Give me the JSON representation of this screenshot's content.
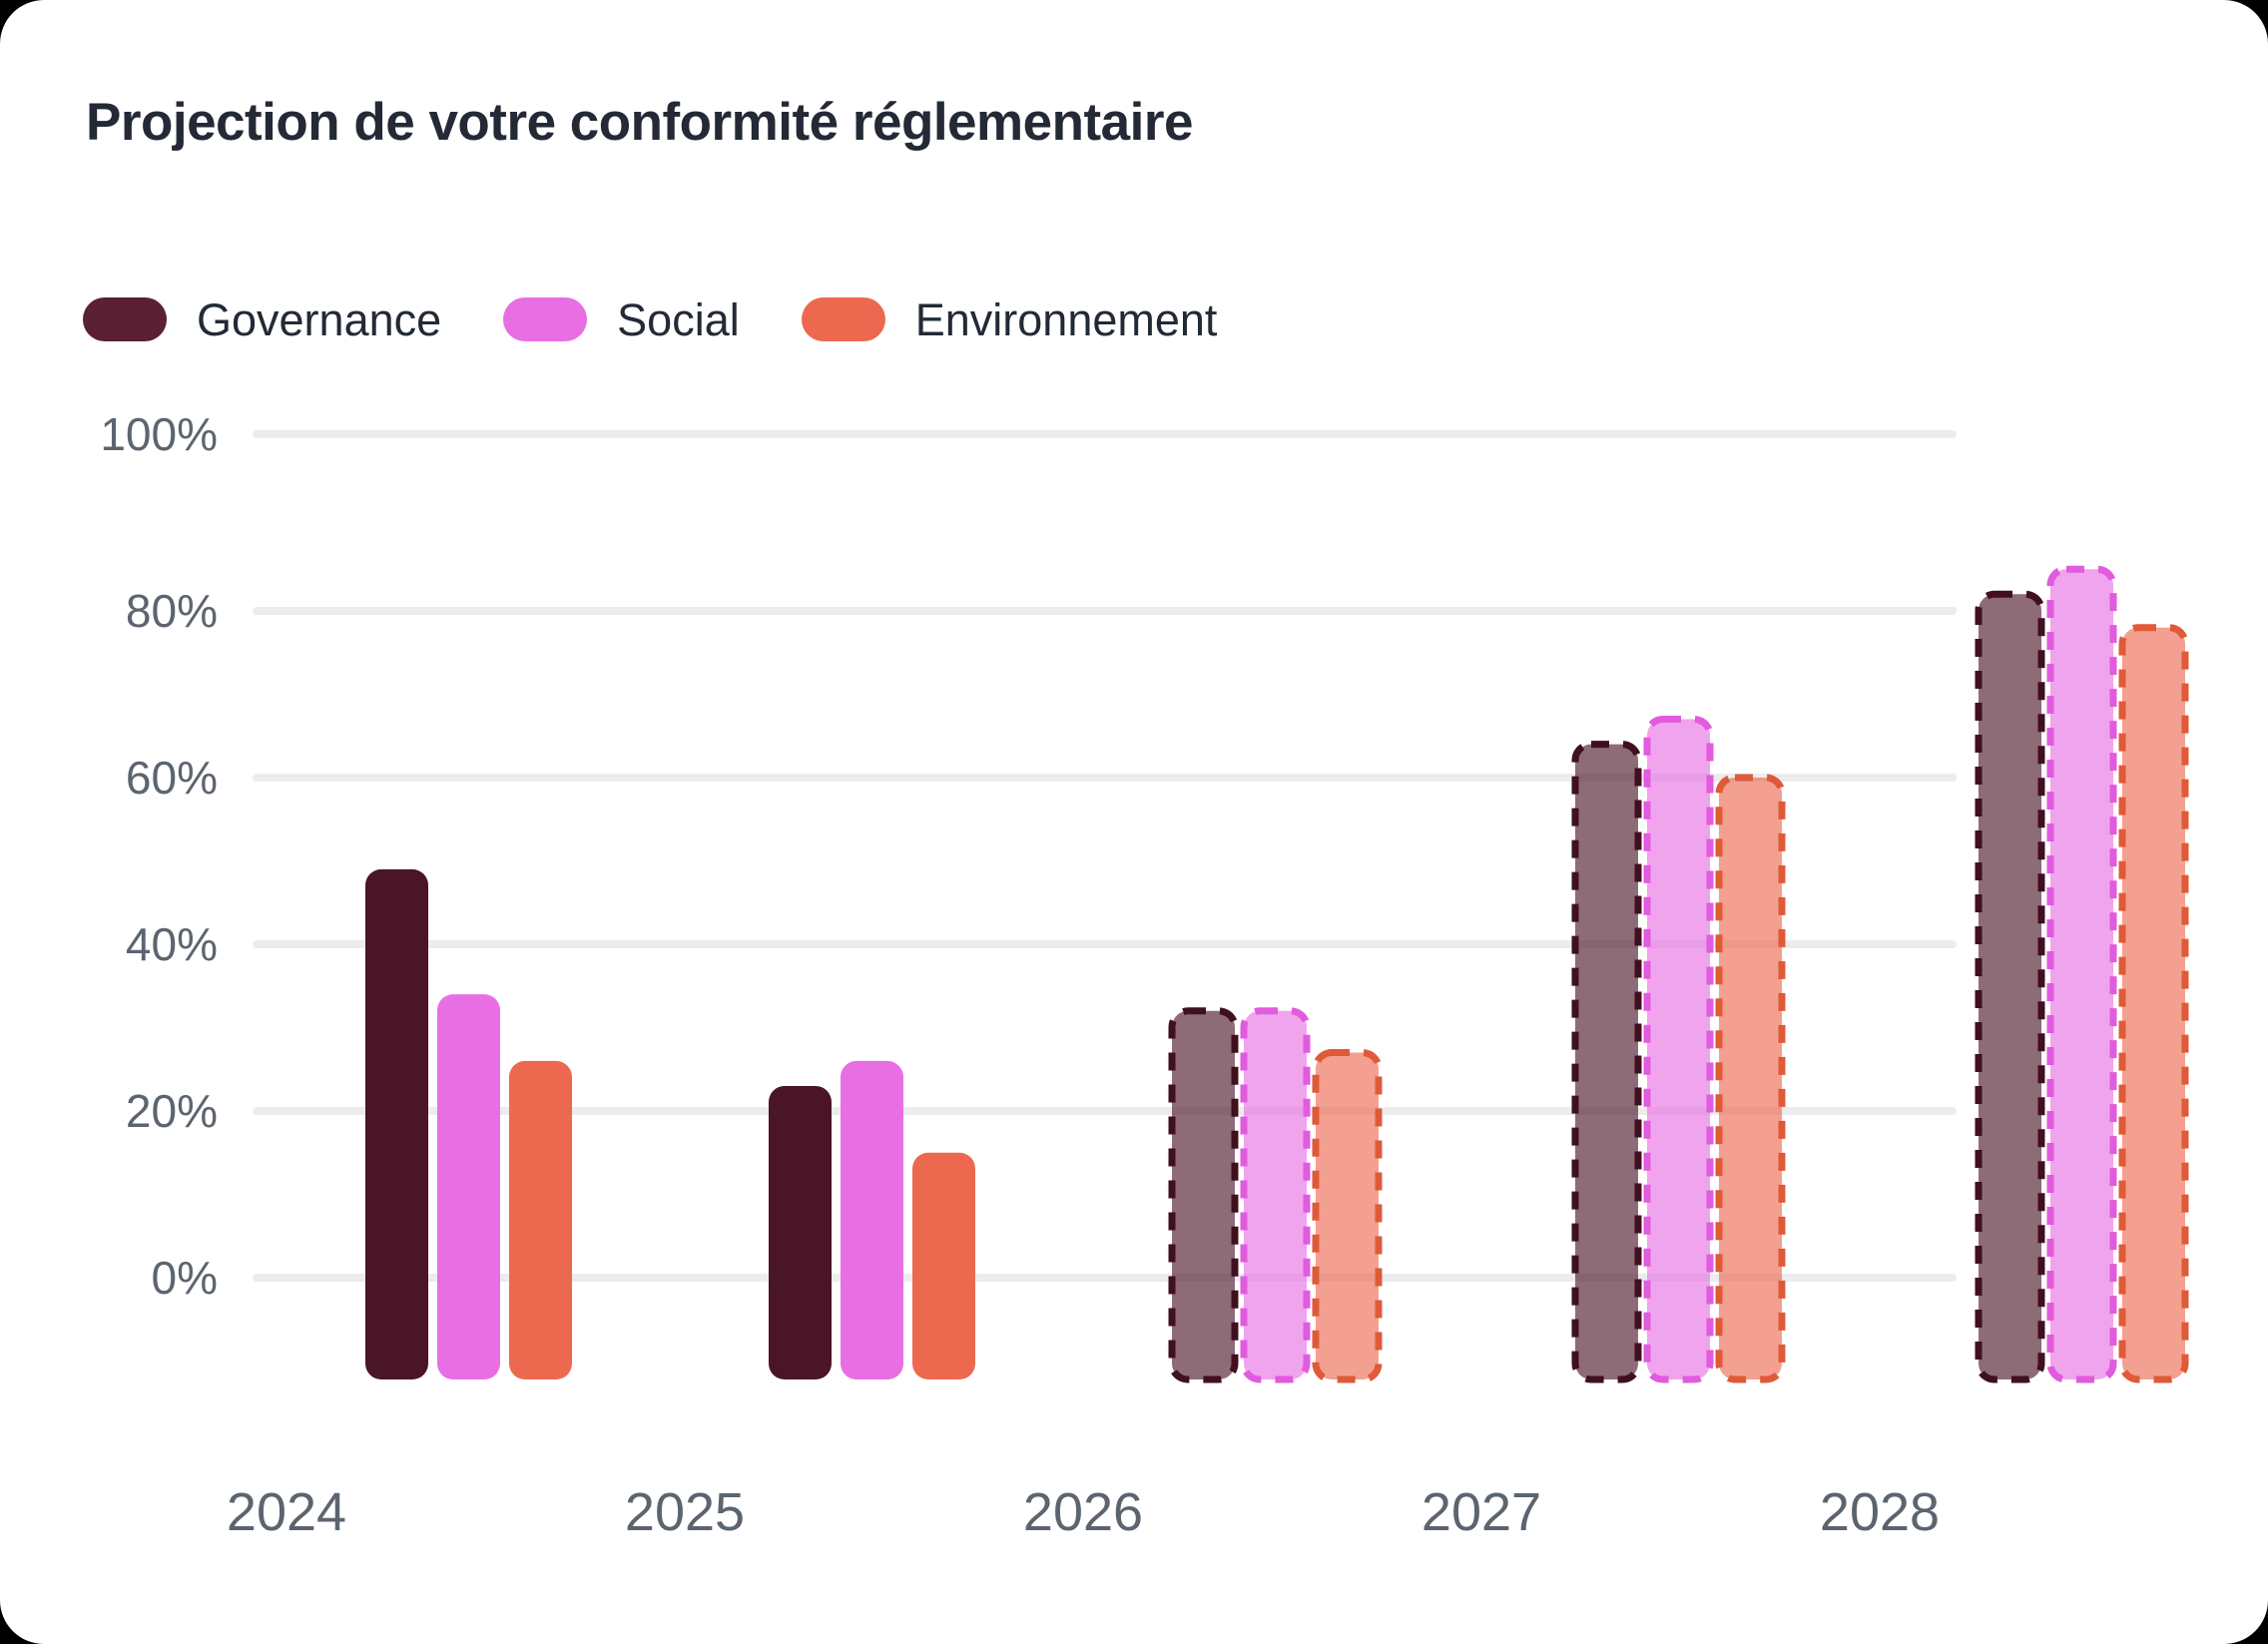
{
  "page": {
    "background_color": "#000000",
    "card_background_color": "#ffffff"
  },
  "title": "Projection de votre conformité réglementaire",
  "legend": [
    {
      "label": "Governance",
      "swatch_color": "#5b2033"
    },
    {
      "label": "Social",
      "swatch_color": "#e76fe3"
    },
    {
      "label": "Environnement",
      "swatch_color": "#ec6950"
    }
  ],
  "chart_data": {
    "type": "bar",
    "title": "Projection de votre conformité réglementaire",
    "xlabel": "",
    "ylabel": "",
    "categories": [
      "2024",
      "2025",
      "2026",
      "2027",
      "2028"
    ],
    "series": [
      {
        "name": "Governance",
        "color": "#4a1527",
        "dash_stroke_color": "#400f20",
        "values": [
          49,
          23,
          32,
          64,
          82
        ]
      },
      {
        "name": "Social",
        "color": "#e76fe3",
        "dash_stroke_color": "#e25ade",
        "values": [
          34,
          26,
          32,
          67,
          85
        ]
      },
      {
        "name": "Environnement",
        "color": "#ec6950",
        "dash_stroke_color": "#df5a38",
        "values": [
          26,
          15,
          27,
          60,
          78
        ]
      }
    ],
    "projected_categories": [
      "2026",
      "2027",
      "2028"
    ],
    "projected_style": "dashed-translucent",
    "y_ticks": [
      "0%",
      "20%",
      "40%",
      "60%",
      "80%",
      "100%"
    ],
    "ylim": [
      0,
      100
    ],
    "grid": true,
    "gridline_color": "#ececee",
    "axis_label_color": "#5c6470",
    "legend_position": "top"
  }
}
